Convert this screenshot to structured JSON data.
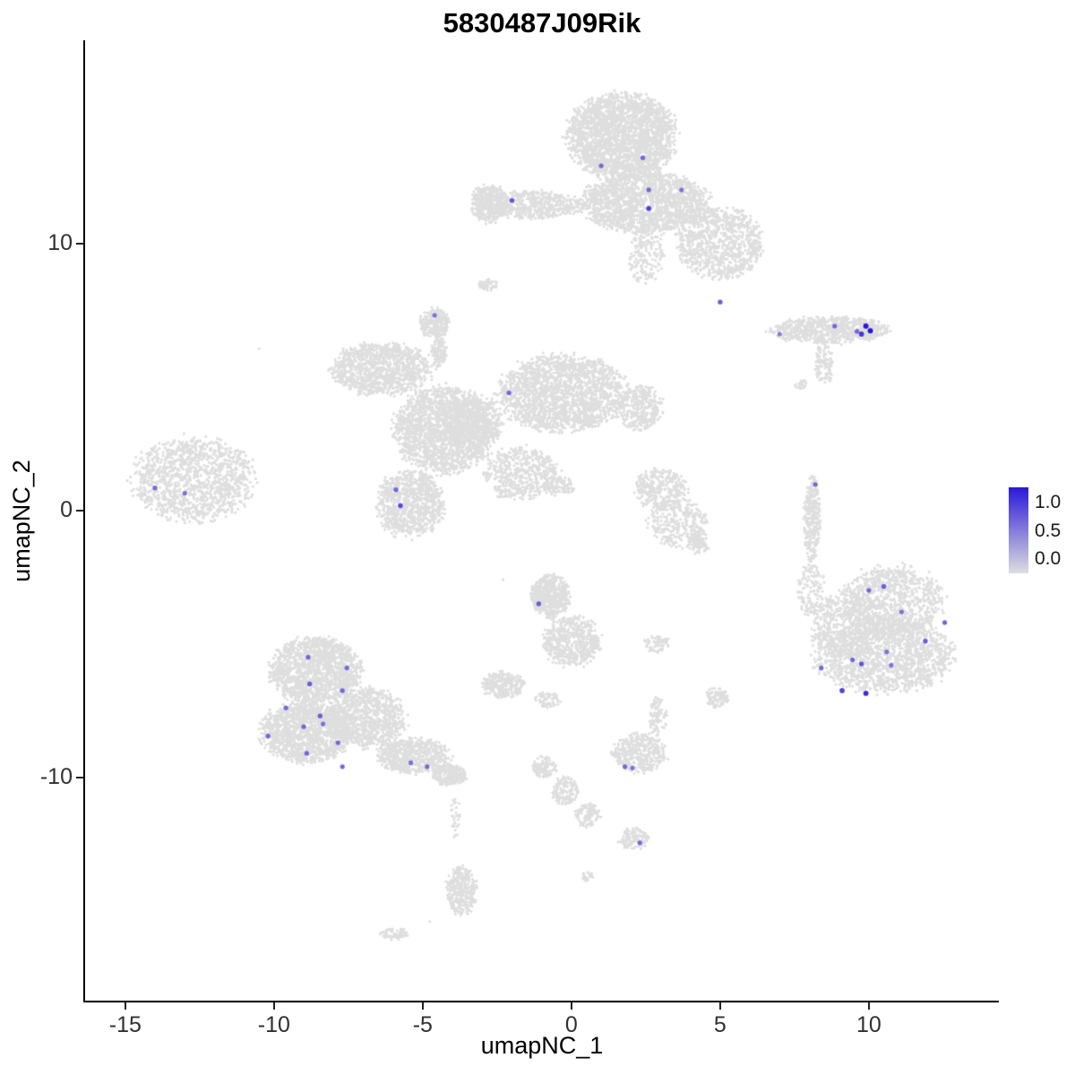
{
  "chart_data": {
    "type": "scatter",
    "title": "5830487J09Rik",
    "xlabel": "umapNC_1",
    "ylabel": "umapNC_2",
    "xlim": [
      -16.35,
      14.37
    ],
    "ylim": [
      -18.36,
      17.6
    ],
    "x_ticks": [
      -15,
      -10,
      -5,
      0,
      5,
      10
    ],
    "y_ticks": [
      -10,
      0,
      10
    ],
    "grid": "off",
    "legend_position": "right",
    "legend": {
      "labels": [
        "1.0",
        "0.5",
        "0.0"
      ]
    },
    "point_color_low": "#DEDEDE",
    "point_color_high": "#2A18D8",
    "axis_color": "#000000",
    "tick_text_color": "#303030",
    "point_radius_px": 1.6,
    "expressing_point_base_radius_px": 2.0,
    "clusters": [
      {
        "name": "top-head",
        "x": 1.7,
        "y": 14.0,
        "rx": 1.8,
        "ry": 1.55,
        "n": 2600
      },
      {
        "name": "top-mid",
        "x": 2.5,
        "y": 11.5,
        "rx": 2.1,
        "ry": 1.1,
        "n": 1800
      },
      {
        "name": "top-right-fan",
        "x": 5.0,
        "y": 10.0,
        "rx": 1.4,
        "ry": 1.3,
        "n": 900
      },
      {
        "name": "top-left-arm",
        "x": -1.3,
        "y": 11.45,
        "rx": 1.7,
        "ry": 0.5,
        "n": 550
      },
      {
        "name": "top-arm-end",
        "x": -2.75,
        "y": 11.5,
        "rx": 0.6,
        "ry": 0.7,
        "n": 400
      },
      {
        "name": "top-lower-trail",
        "x": 2.5,
        "y": 9.5,
        "rx": 0.65,
        "ry": 0.95,
        "n": 160
      },
      {
        "name": "tiny-below-arm",
        "x": -2.8,
        "y": 8.45,
        "rx": 0.3,
        "ry": 0.22,
        "n": 50
      },
      {
        "name": "right-strip",
        "x": 8.7,
        "y": 6.75,
        "rx": 1.95,
        "ry": 0.5,
        "n": 700
      },
      {
        "name": "right-strip-tail",
        "x": 8.5,
        "y": 5.5,
        "rx": 0.3,
        "ry": 0.8,
        "n": 120
      },
      {
        "name": "right-strip-dots",
        "x": 7.7,
        "y": 4.75,
        "rx": 0.2,
        "ry": 0.2,
        "n": 20
      },
      {
        "name": "central-left-wing",
        "x": -6.4,
        "y": 5.3,
        "rx": 1.65,
        "ry": 0.95,
        "n": 1100
      },
      {
        "name": "central-knob",
        "x": -4.6,
        "y": 7.0,
        "rx": 0.5,
        "ry": 0.55,
        "n": 260
      },
      {
        "name": "central-knob-stem",
        "x": -4.45,
        "y": 5.95,
        "rx": 0.25,
        "ry": 0.6,
        "n": 120
      },
      {
        "name": "central-core",
        "x": -4.3,
        "y": 3.0,
        "rx": 1.6,
        "ry": 1.6,
        "n": 1800
      },
      {
        "name": "central-right-lobe",
        "x": -0.3,
        "y": 4.4,
        "rx": 2.1,
        "ry": 1.4,
        "n": 2000
      },
      {
        "name": "central-right-ext",
        "x": 2.3,
        "y": 3.85,
        "rx": 0.75,
        "ry": 0.8,
        "n": 350
      },
      {
        "name": "central-lower-lobe",
        "x": -5.4,
        "y": 0.25,
        "rx": 1.1,
        "ry": 1.25,
        "n": 900
      },
      {
        "name": "central-streak",
        "x": -1.7,
        "y": 1.4,
        "rx": 1.25,
        "ry": 0.95,
        "n": 500
      },
      {
        "name": "central-streak-tip",
        "x": -0.4,
        "y": 0.9,
        "rx": 0.55,
        "ry": 0.35,
        "n": 120
      },
      {
        "name": "central-bridge",
        "x": -3.3,
        "y": 3.3,
        "rx": 0.95,
        "ry": 1.0,
        "n": 600
      },
      {
        "name": "far-left",
        "x": -12.7,
        "y": 1.15,
        "rx": 2.0,
        "ry": 1.55,
        "n": 1300
      },
      {
        "name": "mid-right-a",
        "x": 3.0,
        "y": 0.8,
        "rx": 0.9,
        "ry": 0.75,
        "n": 300
      },
      {
        "name": "mid-right-b",
        "x": 3.6,
        "y": -0.5,
        "rx": 1.0,
        "ry": 0.9,
        "n": 300
      },
      {
        "name": "mid-right-hook",
        "x": 4.3,
        "y": -1.2,
        "rx": 0.35,
        "ry": 0.45,
        "n": 80
      },
      {
        "name": "sliver",
        "x": 8.08,
        "y": -0.3,
        "rx": 0.28,
        "ry": 1.55,
        "n": 300
      },
      {
        "name": "bottom-right-top",
        "x": 10.8,
        "y": -3.4,
        "rx": 1.7,
        "ry": 1.3,
        "n": 900
      },
      {
        "name": "bottom-right-bottom",
        "x": 10.5,
        "y": -5.4,
        "rx": 2.3,
        "ry": 1.4,
        "n": 1600
      },
      {
        "name": "bottom-right-left",
        "x": 9.3,
        "y": -4.3,
        "rx": 1.2,
        "ry": 1.2,
        "n": 500
      },
      {
        "name": "bottom-right-arm",
        "x": 8.05,
        "y": -3.0,
        "rx": 0.45,
        "ry": 1.0,
        "n": 130
      },
      {
        "name": "center-bottom-top",
        "x": -0.7,
        "y": -3.2,
        "rx": 0.62,
        "ry": 0.8,
        "n": 550
      },
      {
        "name": "center-bottom-lower",
        "x": 0.0,
        "y": -4.9,
        "rx": 0.95,
        "ry": 0.95,
        "n": 550
      },
      {
        "name": "center-bottom-right-dots",
        "x": 2.85,
        "y": -5.0,
        "rx": 0.45,
        "ry": 0.3,
        "n": 70
      },
      {
        "name": "small-left-blob",
        "x": -2.3,
        "y": -6.55,
        "rx": 0.68,
        "ry": 0.48,
        "n": 260
      },
      {
        "name": "tiny-below-center",
        "x": -0.8,
        "y": -7.1,
        "rx": 0.4,
        "ry": 0.3,
        "n": 70
      },
      {
        "name": "tiny-right-small",
        "x": 4.9,
        "y": -7.0,
        "rx": 0.38,
        "ry": 0.38,
        "n": 100
      },
      {
        "name": "bottom-left-upper",
        "x": -8.6,
        "y": -6.0,
        "rx": 1.5,
        "ry": 1.2,
        "n": 1500
      },
      {
        "name": "bottom-left-lower",
        "x": -8.9,
        "y": -8.3,
        "rx": 1.5,
        "ry": 1.1,
        "n": 1400
      },
      {
        "name": "bottom-left-right",
        "x": -6.9,
        "y": -7.8,
        "rx": 1.3,
        "ry": 1.1,
        "n": 1000
      },
      {
        "name": "bottom-left-tail",
        "x": -5.3,
        "y": -9.2,
        "rx": 1.2,
        "ry": 0.65,
        "n": 600
      },
      {
        "name": "bottom-left-tail-end",
        "x": -4.1,
        "y": -9.9,
        "rx": 0.55,
        "ry": 0.4,
        "n": 250
      },
      {
        "name": "below-tail-sparse",
        "x": -3.9,
        "y": -11.45,
        "rx": 0.15,
        "ry": 0.8,
        "n": 35
      },
      {
        "name": "bottom-center-blob",
        "x": 2.3,
        "y": -9.1,
        "rx": 0.9,
        "ry": 0.7,
        "n": 400
      },
      {
        "name": "bottom-center-uptail",
        "x": 2.9,
        "y": -7.8,
        "rx": 0.3,
        "ry": 0.75,
        "n": 90
      },
      {
        "name": "streak-a",
        "x": -0.9,
        "y": -9.6,
        "rx": 0.4,
        "ry": 0.4,
        "n": 110
      },
      {
        "name": "streak-b",
        "x": -0.2,
        "y": -10.5,
        "rx": 0.45,
        "ry": 0.55,
        "n": 130
      },
      {
        "name": "streak-c",
        "x": 0.55,
        "y": -11.4,
        "rx": 0.4,
        "ry": 0.45,
        "n": 110
      },
      {
        "name": "streak-end",
        "x": 2.1,
        "y": -12.3,
        "rx": 0.5,
        "ry": 0.4,
        "n": 130
      },
      {
        "name": "bottom-small",
        "x": -3.7,
        "y": -14.25,
        "rx": 0.5,
        "ry": 0.9,
        "n": 320
      },
      {
        "name": "bottom-dash",
        "x": -5.95,
        "y": -15.85,
        "rx": 0.45,
        "ry": 0.22,
        "n": 70
      },
      {
        "name": "bottom-dot",
        "x": 0.55,
        "y": -13.7,
        "rx": 0.18,
        "ry": 0.18,
        "n": 25
      }
    ],
    "stray_points": [
      [
        -10.5,
        6.05
      ],
      [
        -4.76,
        -15.4
      ],
      [
        -2.3,
        -2.6
      ]
    ],
    "expressing_points": [
      [
        1.0,
        12.9,
        0.6
      ],
      [
        2.4,
        13.2,
        0.6
      ],
      [
        2.6,
        12.0,
        0.6
      ],
      [
        3.7,
        12.0,
        0.55
      ],
      [
        2.6,
        11.3,
        0.8
      ],
      [
        -2.0,
        11.6,
        0.7
      ],
      [
        5.0,
        7.8,
        0.65
      ],
      [
        7.0,
        6.6,
        0.5
      ],
      [
        8.85,
        6.9,
        0.6
      ],
      [
        9.6,
        6.7,
        0.6
      ],
      [
        9.9,
        6.9,
        1.0
      ],
      [
        10.05,
        6.72,
        1.0
      ],
      [
        9.75,
        6.6,
        0.85
      ],
      [
        -2.1,
        4.4,
        0.6
      ],
      [
        -4.6,
        7.3,
        0.55
      ],
      [
        -5.9,
        0.77,
        0.6
      ],
      [
        -5.75,
        0.17,
        0.75
      ],
      [
        -14.0,
        0.84,
        0.6
      ],
      [
        -13.0,
        0.64,
        0.55
      ],
      [
        8.2,
        0.97,
        0.6
      ],
      [
        10.0,
        -3.0,
        0.6
      ],
      [
        10.5,
        -2.85,
        0.65
      ],
      [
        11.1,
        -3.8,
        0.55
      ],
      [
        12.55,
        -4.2,
        0.6
      ],
      [
        11.9,
        -4.9,
        0.65
      ],
      [
        10.6,
        -5.3,
        0.55
      ],
      [
        9.45,
        -5.6,
        0.6
      ],
      [
        8.4,
        -5.9,
        0.6
      ],
      [
        9.75,
        -5.75,
        0.7
      ],
      [
        10.75,
        -5.8,
        0.55
      ],
      [
        9.1,
        -6.75,
        0.8
      ],
      [
        9.9,
        -6.85,
        0.9
      ],
      [
        -1.1,
        -3.5,
        0.65
      ],
      [
        -8.85,
        -5.5,
        0.6
      ],
      [
        -7.55,
        -5.9,
        0.6
      ],
      [
        -8.8,
        -6.5,
        0.65
      ],
      [
        -7.7,
        -6.75,
        0.6
      ],
      [
        -9.6,
        -7.4,
        0.6
      ],
      [
        -8.45,
        -7.7,
        0.65
      ],
      [
        -9.0,
        -8.1,
        0.6
      ],
      [
        -8.35,
        -8.0,
        0.55
      ],
      [
        -10.2,
        -8.45,
        0.6
      ],
      [
        -7.85,
        -8.7,
        0.6
      ],
      [
        -8.9,
        -9.1,
        0.6
      ],
      [
        -7.7,
        -9.6,
        0.6
      ],
      [
        -5.4,
        -9.45,
        0.55
      ],
      [
        -4.85,
        -9.6,
        0.6
      ],
      [
        1.8,
        -9.6,
        0.6
      ],
      [
        2.05,
        -9.65,
        0.55
      ],
      [
        2.3,
        -12.45,
        0.6
      ]
    ]
  }
}
